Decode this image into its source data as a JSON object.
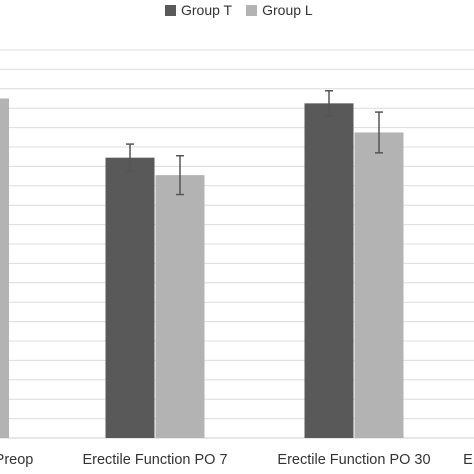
{
  "chart_data": {
    "type": "bar",
    "title": "",
    "xlabel": "",
    "ylabel": "",
    "ylim": [
      0,
      40
    ],
    "grid": true,
    "legend_position": "top-center",
    "categories": [
      "Preop",
      "Erectile Function PO 7",
      "Erectile Function PO 30",
      "E"
    ],
    "series": [
      {
        "name": "Group T",
        "color": "#595959",
        "values": [
          null,
          28.9,
          34.5,
          null
        ],
        "errors": [
          null,
          1.4,
          1.3,
          null
        ]
      },
      {
        "name": "Group L",
        "color": "#b3b3b3",
        "values": [
          35.0,
          27.1,
          31.5,
          null
        ],
        "errors": [
          null,
          2.0,
          2.1,
          null
        ]
      }
    ]
  }
}
